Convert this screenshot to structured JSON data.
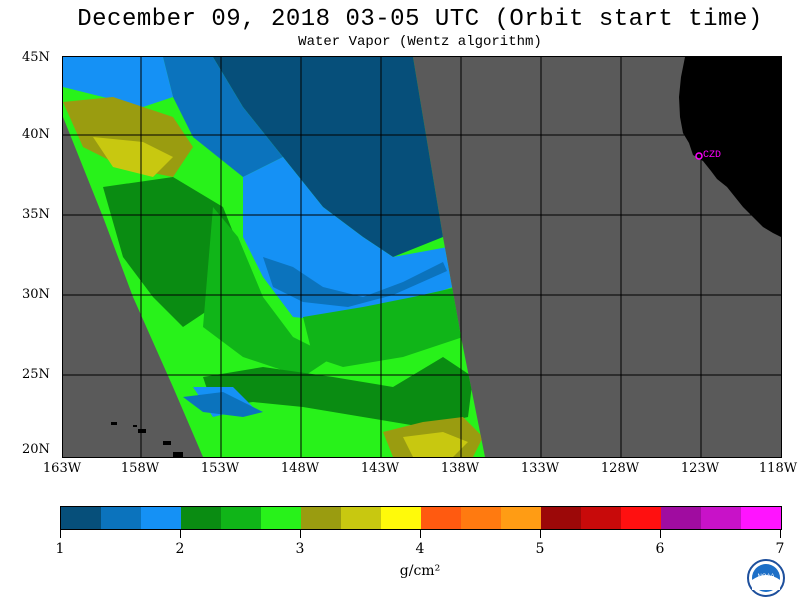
{
  "title": "December 09, 2018  03-05 UTC  (Orbit start time)",
  "subtitle": "Water Vapor (Wentz algorithm)",
  "lat_labels": [
    "45N",
    "40N",
    "35N",
    "30N",
    "25N",
    "20N"
  ],
  "lon_labels": [
    "163W",
    "158W",
    "153W",
    "148W",
    "143W",
    "138W",
    "133W",
    "128W",
    "123W",
    "118W"
  ],
  "station_label": "CZD",
  "colorbar": {
    "colors": [
      "#064f7a",
      "#0b73bd",
      "#1591f5",
      "#0a8c12",
      "#10b518",
      "#28f21a",
      "#9a9c10",
      "#c8c810",
      "#fffa0a",
      "#ff5a10",
      "#ff7a10",
      "#ff9c14",
      "#9c0808",
      "#c80a0a",
      "#ff1010",
      "#a00ca0",
      "#c812c8",
      "#ff14ff"
    ],
    "tick_labels": [
      "1",
      "2",
      "3",
      "4",
      "5",
      "6",
      "7"
    ],
    "units": "g/cm²"
  },
  "logo": {
    "left_letters": "E S R L",
    "right_letters": "P S D",
    "center_text": "NOAA"
  },
  "map_colors": {
    "ocean_no_data": "#5a5a5a",
    "land": "#000000",
    "grid": "#000000",
    "station": "#ff00ff"
  }
}
